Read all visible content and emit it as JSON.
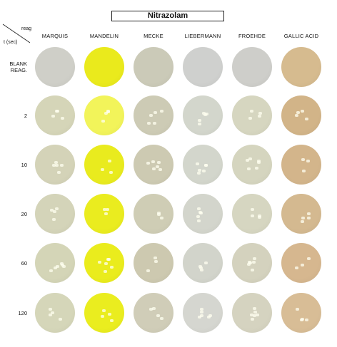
{
  "title": "Nitrazolam",
  "corner": {
    "reag": "reag",
    "time": "t (sec)"
  },
  "columns": [
    "MARQUIS",
    "MANDELIN",
    "MECKE",
    "LIEBERMANN",
    "FROEHDE",
    "GALLIC ACID"
  ],
  "rows": [
    {
      "label_line1": "BLANK",
      "label_line2": "REAG."
    },
    {
      "label_line1": "2",
      "label_line2": ""
    },
    {
      "label_line1": "10",
      "label_line2": ""
    },
    {
      "label_line1": "20",
      "label_line2": ""
    },
    {
      "label_line1": "60",
      "label_line2": ""
    },
    {
      "label_line1": "120",
      "label_line2": ""
    }
  ],
  "well_colors": [
    [
      "#cfcfc8",
      "#eaea1c",
      "#cbcab8",
      "#cfd0ce",
      "#cececa",
      "#d6bb8f"
    ],
    [
      "#d5d5b8",
      "#f2f45a",
      "#cdcbb5",
      "#d3d6cc",
      "#d6d6c0",
      "#d2b488"
    ],
    [
      "#d4d3b8",
      "#e9eb1e",
      "#cdcab2",
      "#d3d6cc",
      "#d5d5bf",
      "#d3b58b"
    ],
    [
      "#d4d4b9",
      "#eaec1f",
      "#cfcdb5",
      "#d3d5cc",
      "#d6d6c1",
      "#d4b990"
    ],
    [
      "#d4d5b7",
      "#eaec1d",
      "#cdc9b0",
      "#d2d4cb",
      "#d4d2be",
      "#d6b78f"
    ],
    [
      "#d5d6b9",
      "#eaed1f",
      "#d0cdb8",
      "#d5d6d0",
      "#d5d3c0",
      "#d8bd96"
    ]
  ]
}
